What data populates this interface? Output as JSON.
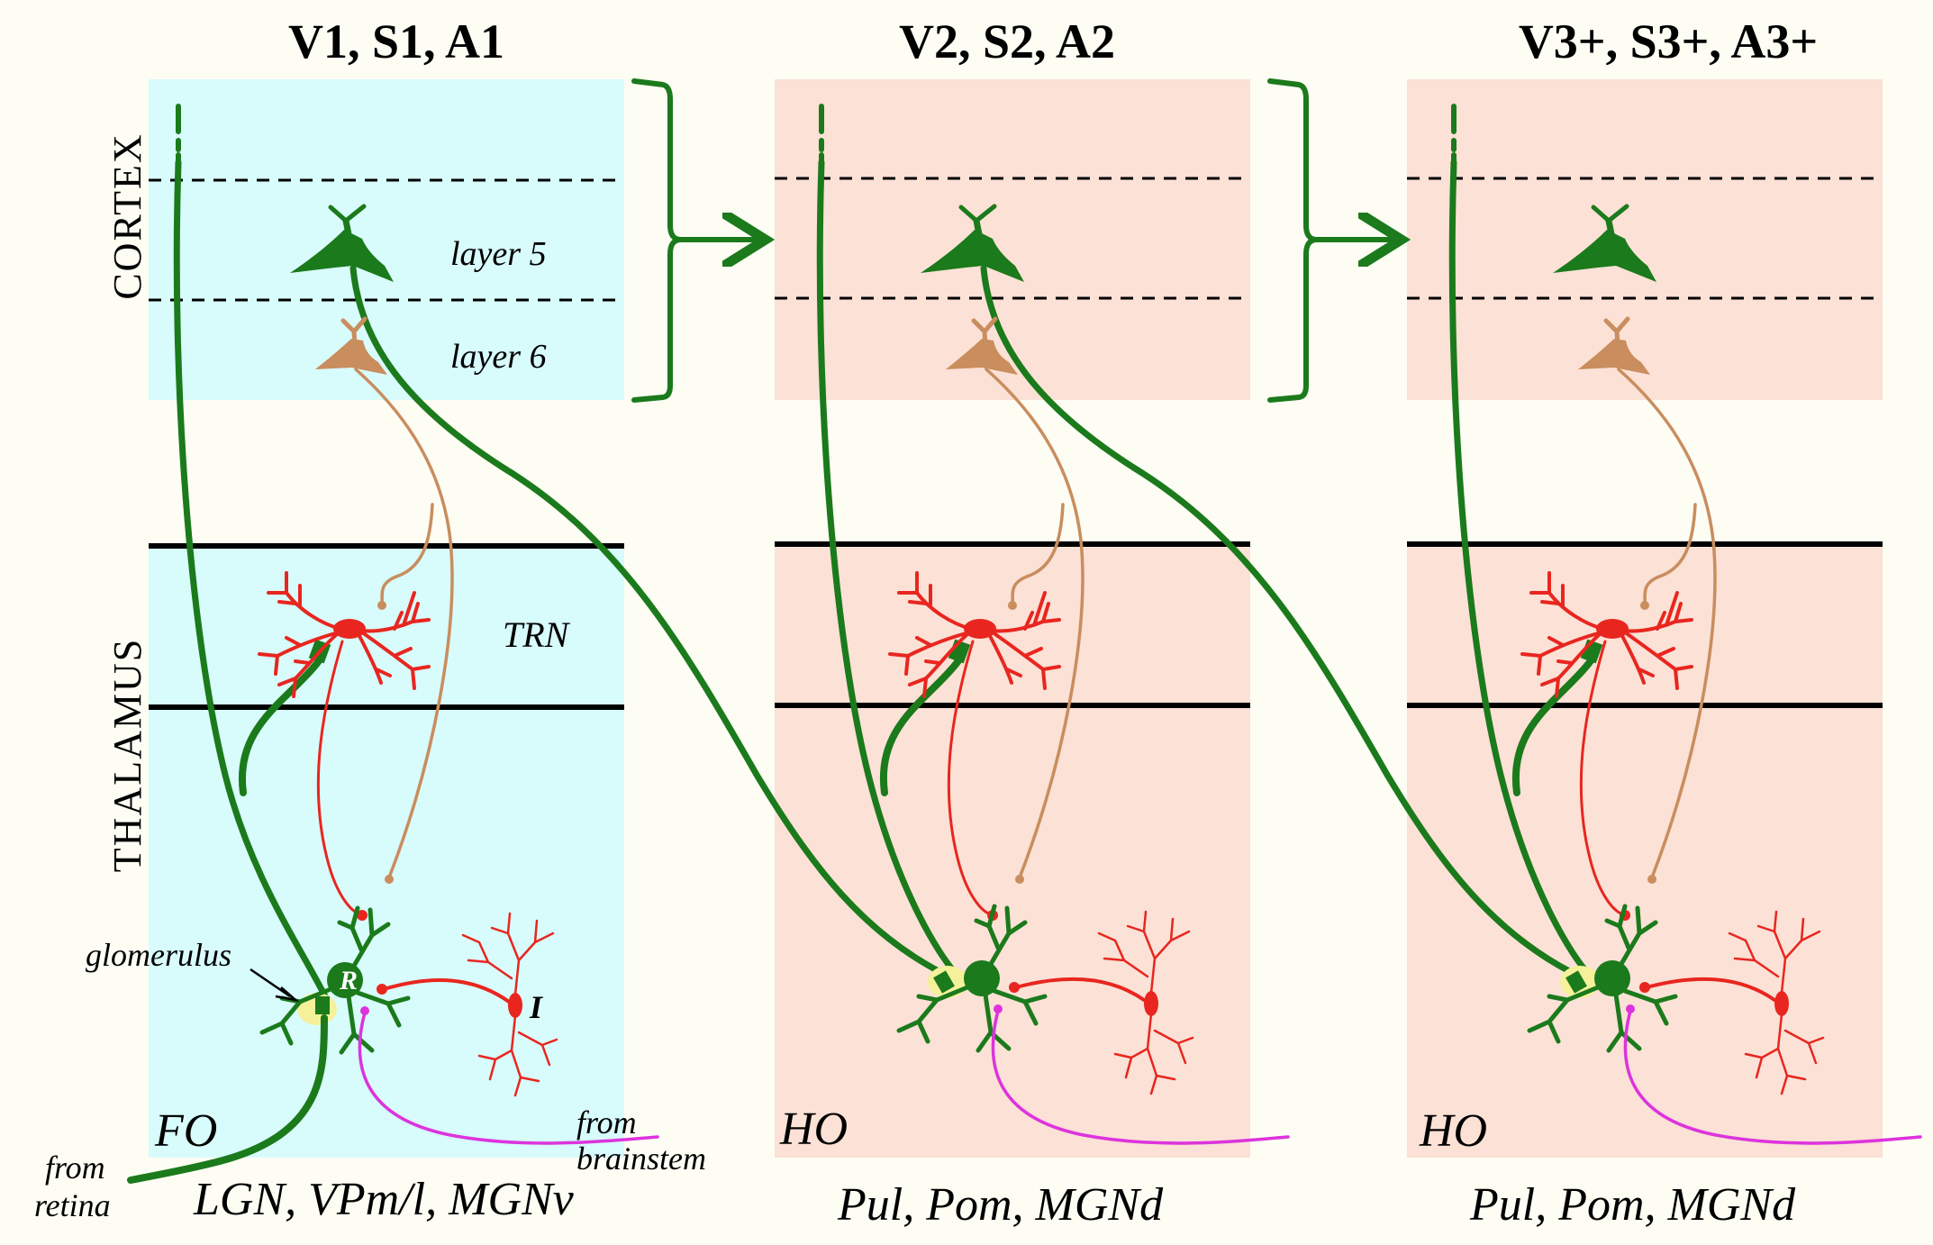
{
  "columns": [
    {
      "title": "V1, S1, A1",
      "nucleus_type": "FO",
      "nuclei": "LGN, VPm/l, MGNv"
    },
    {
      "title": "V2, S2, A2",
      "nucleus_type": "HO",
      "nuclei": "Pul, Pom, MGNd"
    },
    {
      "title": "V3+, S3+, A3+",
      "nucleus_type": "HO",
      "nuclei": "Pul, Pom, MGNd"
    }
  ],
  "regions": {
    "cortex": "CORTEX",
    "thalamus": "THALAMUS"
  },
  "layers": {
    "layer5": "layer 5",
    "layer6": "layer 6"
  },
  "labels": {
    "trn": "TRN",
    "glomerulus": "glomerulus",
    "relay_cell": "R",
    "interneuron": "I",
    "from_retina_1": "from",
    "from_retina_2": "retina",
    "from_brainstem_1": "from",
    "from_brainstem_2": "brainstem"
  },
  "colors": {
    "first_order_bg": "#d8fbfb",
    "higher_order_bg": "#fbe1d6",
    "driver_pathway": "#1b7a1b",
    "trn_interneuron": "#e8261f",
    "layer6": "#c98d5e",
    "brainstem": "#dd33dd",
    "glomerulus": "#f4f19a"
  }
}
